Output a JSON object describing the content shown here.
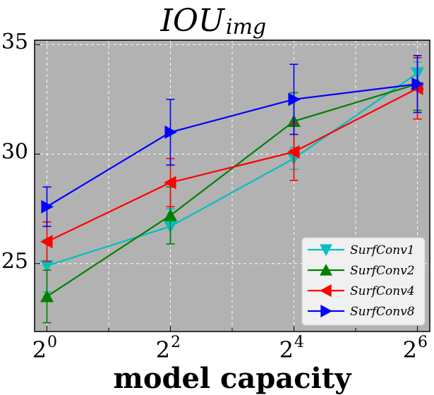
{
  "chart_data": {
    "type": "line",
    "title_main": "IOU",
    "title_sub": "img",
    "xlabel": "model capacity",
    "ylabel": "",
    "x_scale": "log2",
    "x": [
      0,
      2,
      4,
      6
    ],
    "xticks": [
      {
        "exp": 0,
        "base": "2",
        "power": "0"
      },
      {
        "exp": 2,
        "base": "2",
        "power": "2"
      },
      {
        "exp": 4,
        "base": "2",
        "power": "4"
      },
      {
        "exp": 6,
        "base": "2",
        "power": "6"
      }
    ],
    "yticks": [
      {
        "value": 25,
        "label": "25"
      },
      {
        "value": 30,
        "label": "30"
      },
      {
        "value": 35,
        "label": "35"
      }
    ],
    "xlim": [
      -0.2,
      6.2
    ],
    "ylim": [
      21.9,
      35.2
    ],
    "grid": true,
    "legend_position": "bottom-right",
    "series": [
      {
        "name": "SurfConv1",
        "color": "#00bfbf",
        "marker": "triangle-down",
        "values": [
          24.9,
          26.7,
          29.8,
          33.7
        ],
        "errors": [
          1.2,
          0.8,
          0.5,
          0.5
        ]
      },
      {
        "name": "SurfConv2",
        "color": "#008000",
        "marker": "triangle-up",
        "values": [
          23.5,
          27.2,
          31.5,
          33.2
        ],
        "errors": [
          1.2,
          1.3,
          1.3,
          1.2
        ]
      },
      {
        "name": "SurfConv4",
        "color": "#ff0000",
        "marker": "triangle-left",
        "values": [
          26.0,
          28.7,
          30.1,
          33.0
        ],
        "errors": [
          0.9,
          1.1,
          1.3,
          1.4
        ]
      },
      {
        "name": "SurfConv8",
        "color": "#0000ff",
        "marker": "triangle-right",
        "values": [
          27.6,
          31.0,
          32.5,
          33.2
        ],
        "errors": [
          0.9,
          1.5,
          1.6,
          1.3
        ]
      }
    ]
  }
}
